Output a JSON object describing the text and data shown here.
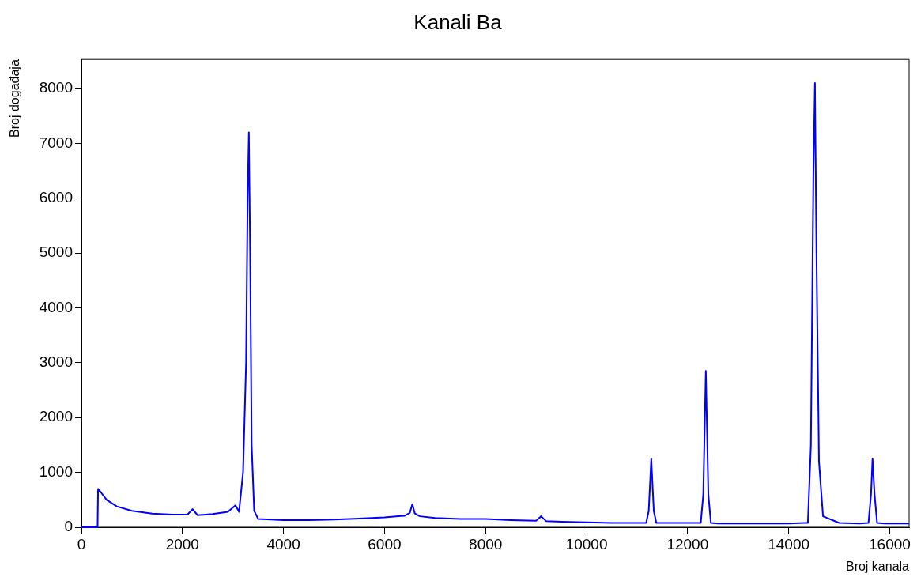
{
  "chart_data": {
    "type": "line",
    "title": "Kanali Ba",
    "xlabel": "Broj kanala",
    "ylabel": "Broj događaja",
    "series": [
      {
        "color": "#0000ff",
        "x": [
          0,
          320,
          330,
          400,
          500,
          700,
          1000,
          1400,
          1800,
          2100,
          2200,
          2300,
          2600,
          2900,
          3050,
          3120,
          3200,
          3260,
          3290,
          3315,
          3340,
          3370,
          3420,
          3500,
          4000,
          4500,
          5000,
          5500,
          6000,
          6400,
          6500,
          6550,
          6600,
          6700,
          7000,
          7500,
          8000,
          8500,
          9000,
          9100,
          9200,
          9500,
          10000,
          10500,
          11000,
          11180,
          11230,
          11280,
          11330,
          11380,
          11500,
          12000,
          12260,
          12310,
          12360,
          12410,
          12460,
          12600,
          13000,
          13500,
          14000,
          14380,
          14440,
          14490,
          14520,
          14550,
          14600,
          14680,
          15000,
          15400,
          15580,
          15630,
          15660,
          15700,
          15750,
          15900,
          16384
        ],
        "values": [
          0,
          0,
          700,
          620,
          500,
          380,
          300,
          250,
          230,
          230,
          330,
          220,
          240,
          280,
          400,
          280,
          1000,
          3000,
          6000,
          7200,
          5000,
          1500,
          300,
          150,
          130,
          130,
          140,
          160,
          180,
          210,
          260,
          420,
          250,
          200,
          170,
          150,
          150,
          130,
          120,
          200,
          110,
          100,
          90,
          80,
          80,
          80,
          300,
          1250,
          300,
          80,
          80,
          80,
          80,
          600,
          2850,
          600,
          80,
          70,
          70,
          70,
          70,
          80,
          1500,
          6500,
          8100,
          5000,
          1200,
          200,
          80,
          70,
          80,
          600,
          1250,
          600,
          80,
          70,
          70
        ]
      }
    ],
    "xlim": [
      0,
      16384
    ],
    "xticks": [
      0,
      2000,
      4000,
      6000,
      8000,
      10000,
      12000,
      14000,
      16000
    ],
    "ylim": [
      0,
      8530
    ],
    "yticks": [
      0,
      1000,
      2000,
      3000,
      4000,
      5000,
      6000,
      7000,
      8000
    ],
    "grid": false,
    "legend": false,
    "marker": "none",
    "line_style": "solid"
  }
}
